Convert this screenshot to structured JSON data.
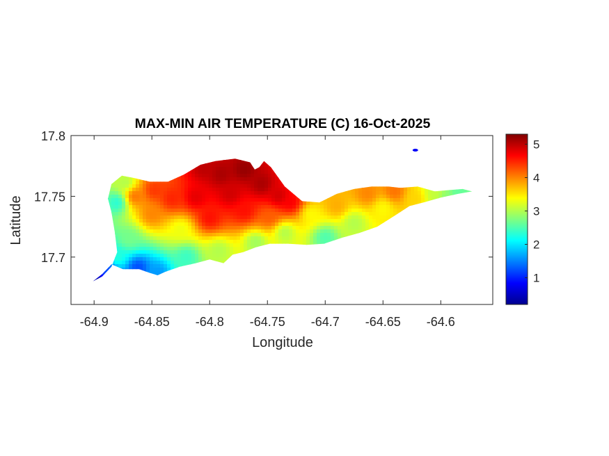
{
  "chart_data": {
    "type": "heatmap",
    "title": "MAX-MIN AIR TEMPERATURE (C) 16-Oct-2025",
    "xlabel": "Longitude",
    "ylabel": "Latitude",
    "xlim": [
      -64.92,
      -64.555
    ],
    "ylim": [
      17.661,
      17.8
    ],
    "x_ticks": [
      -64.9,
      -64.85,
      -64.8,
      -64.75,
      -64.7,
      -64.65,
      -64.6
    ],
    "x_tick_labels": [
      "-64.9",
      "-64.85",
      "-64.8",
      "-64.75",
      "-64.7",
      "-64.65",
      "-64.6"
    ],
    "y_ticks": [
      17.7,
      17.75,
      17.8
    ],
    "y_tick_labels": [
      "17.7",
      "17.75",
      "17.8"
    ],
    "grid": false,
    "colormap": "jet",
    "colorbar": {
      "range": [
        0.2,
        5.3
      ],
      "ticks": [
        1,
        2,
        3,
        4,
        5
      ],
      "tick_labels": [
        "1",
        "2",
        "3",
        "4",
        "5"
      ],
      "placement": "right"
    },
    "island_outline": [
      [
        -64.901,
        17.68
      ],
      [
        -64.893,
        17.686
      ],
      [
        -64.885,
        17.694
      ],
      [
        -64.875,
        17.69
      ],
      [
        -64.861,
        17.69
      ],
      [
        -64.852,
        17.687
      ],
      [
        -64.845,
        17.685
      ],
      [
        -64.838,
        17.688
      ],
      [
        -64.826,
        17.692
      ],
      [
        -64.812,
        17.695
      ],
      [
        -64.8,
        17.698
      ],
      [
        -64.788,
        17.695
      ],
      [
        -64.78,
        17.702
      ],
      [
        -64.771,
        17.704
      ],
      [
        -64.76,
        17.708
      ],
      [
        -64.748,
        17.711
      ],
      [
        -64.732,
        17.711
      ],
      [
        -64.716,
        17.71
      ],
      [
        -64.701,
        17.711
      ],
      [
        -64.685,
        17.716
      ],
      [
        -64.67,
        17.72
      ],
      [
        -64.655,
        17.725
      ],
      [
        -64.64,
        17.734
      ],
      [
        -64.627,
        17.742
      ],
      [
        -64.615,
        17.745
      ],
      [
        -64.6,
        17.749
      ],
      [
        -64.585,
        17.752
      ],
      [
        -64.573,
        17.754
      ],
      [
        -64.581,
        17.756
      ],
      [
        -64.595,
        17.755
      ],
      [
        -64.605,
        17.754
      ],
      [
        -64.62,
        17.758
      ],
      [
        -64.635,
        17.757
      ],
      [
        -64.645,
        17.758
      ],
      [
        -64.66,
        17.758
      ],
      [
        -64.675,
        17.756
      ],
      [
        -64.69,
        17.752
      ],
      [
        -64.705,
        17.745
      ],
      [
        -64.72,
        17.746
      ],
      [
        -64.735,
        17.758
      ],
      [
        -64.747,
        17.774
      ],
      [
        -64.753,
        17.779
      ],
      [
        -64.757,
        17.774
      ],
      [
        -64.761,
        17.772
      ],
      [
        -64.765,
        17.778
      ],
      [
        -64.778,
        17.781
      ],
      [
        -64.795,
        17.779
      ],
      [
        -64.808,
        17.776
      ],
      [
        -64.822,
        17.768
      ],
      [
        -64.836,
        17.762
      ],
      [
        -64.852,
        17.762
      ],
      [
        -64.865,
        17.765
      ],
      [
        -64.876,
        17.767
      ],
      [
        -64.885,
        17.76
      ],
      [
        -64.888,
        17.748
      ],
      [
        -64.885,
        17.737
      ],
      [
        -64.882,
        17.72
      ],
      [
        -64.88,
        17.704
      ],
      [
        -64.885,
        17.692
      ],
      [
        -64.893,
        17.684
      ]
    ],
    "samples": [
      {
        "x": -64.898,
        "y": 17.681,
        "v": 0.4
      },
      {
        "x": -64.889,
        "y": 17.689,
        "v": 1.2
      },
      {
        "x": -64.88,
        "y": 17.7,
        "v": 2.3
      },
      {
        "x": -64.88,
        "y": 17.745,
        "v": 2.3
      },
      {
        "x": -64.873,
        "y": 17.761,
        "v": 3.0
      },
      {
        "x": -64.862,
        "y": 17.691,
        "v": 1.2
      },
      {
        "x": -64.845,
        "y": 17.687,
        "v": 1.6
      },
      {
        "x": -64.87,
        "y": 17.715,
        "v": 2.7
      },
      {
        "x": -64.865,
        "y": 17.75,
        "v": 4.1
      },
      {
        "x": -64.85,
        "y": 17.735,
        "v": 4.0
      },
      {
        "x": -64.848,
        "y": 17.755,
        "v": 4.4
      },
      {
        "x": -64.833,
        "y": 17.748,
        "v": 4.5
      },
      {
        "x": -64.825,
        "y": 17.723,
        "v": 3.3
      },
      {
        "x": -64.82,
        "y": 17.7,
        "v": 2.4
      },
      {
        "x": -64.812,
        "y": 17.749,
        "v": 4.8
      },
      {
        "x": -64.805,
        "y": 17.773,
        "v": 5.0
      },
      {
        "x": -64.8,
        "y": 17.732,
        "v": 4.6
      },
      {
        "x": -64.792,
        "y": 17.705,
        "v": 3.0
      },
      {
        "x": -64.79,
        "y": 17.768,
        "v": 5.1
      },
      {
        "x": -64.782,
        "y": 17.752,
        "v": 4.9
      },
      {
        "x": -64.77,
        "y": 17.738,
        "v": 4.6
      },
      {
        "x": -64.77,
        "y": 17.772,
        "v": 5.2
      },
      {
        "x": -64.76,
        "y": 17.712,
        "v": 2.9
      },
      {
        "x": -64.755,
        "y": 17.76,
        "v": 5.1
      },
      {
        "x": -64.748,
        "y": 17.733,
        "v": 4.2
      },
      {
        "x": -64.74,
        "y": 17.75,
        "v": 4.9
      },
      {
        "x": -64.73,
        "y": 17.745,
        "v": 4.7
      },
      {
        "x": -64.735,
        "y": 17.72,
        "v": 3.0
      },
      {
        "x": -64.712,
        "y": 17.735,
        "v": 3.4
      },
      {
        "x": -64.7,
        "y": 17.716,
        "v": 2.5
      },
      {
        "x": -64.69,
        "y": 17.742,
        "v": 3.8
      },
      {
        "x": -64.675,
        "y": 17.728,
        "v": 3.0
      },
      {
        "x": -64.663,
        "y": 17.752,
        "v": 4.0
      },
      {
        "x": -64.65,
        "y": 17.74,
        "v": 3.4
      },
      {
        "x": -64.64,
        "y": 17.754,
        "v": 4.1
      },
      {
        "x": -64.622,
        "y": 17.748,
        "v": 3.6
      },
      {
        "x": -64.605,
        "y": 17.752,
        "v": 3.1
      },
      {
        "x": -64.585,
        "y": 17.754,
        "v": 2.6
      },
      {
        "x": -64.595,
        "y": 17.748,
        "v": 2.8
      }
    ],
    "islet": {
      "x": -64.622,
      "y": 17.788,
      "v": 0.8
    }
  }
}
